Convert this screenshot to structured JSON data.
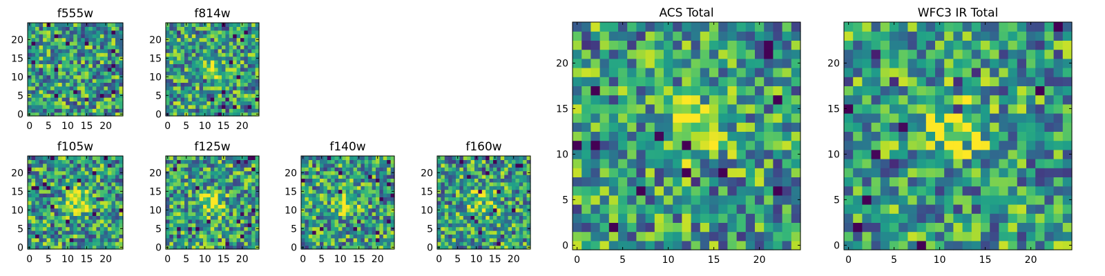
{
  "chart_data": [
    {
      "type": "heatmap",
      "title": "f555w",
      "grid_size": 25,
      "xlim": [
        0,
        25
      ],
      "ylim": [
        0,
        25
      ],
      "xticks": [
        0,
        5,
        10,
        15,
        20
      ],
      "yticks": [
        0,
        5,
        10,
        15,
        20
      ],
      "colormap": "viridis",
      "source_peak": null
    },
    {
      "type": "heatmap",
      "title": "f814w",
      "grid_size": 25,
      "xlim": [
        0,
        25
      ],
      "ylim": [
        0,
        25
      ],
      "xticks": [
        0,
        5,
        10,
        15,
        20
      ],
      "yticks": [
        0,
        5,
        10,
        15,
        20
      ],
      "colormap": "viridis",
      "source_peak": [
        12,
        12
      ]
    },
    {
      "type": "heatmap",
      "title": "f105w",
      "grid_size": 25,
      "xlim": [
        0,
        25
      ],
      "ylim": [
        0,
        25
      ],
      "xticks": [
        0,
        5,
        10,
        15,
        20
      ],
      "yticks": [
        0,
        5,
        10,
        15,
        20
      ],
      "colormap": "viridis",
      "source_peak": [
        13,
        12
      ]
    },
    {
      "type": "heatmap",
      "title": "f125w",
      "grid_size": 25,
      "xlim": [
        0,
        25
      ],
      "ylim": [
        0,
        25
      ],
      "xticks": [
        0,
        5,
        10,
        15,
        20
      ],
      "yticks": [
        0,
        5,
        10,
        15,
        20
      ],
      "colormap": "viridis",
      "source_peak": [
        12,
        12
      ]
    },
    {
      "type": "heatmap",
      "title": "f140w",
      "grid_size": 25,
      "xlim": [
        0,
        25
      ],
      "ylim": [
        0,
        25
      ],
      "xticks": [
        0,
        5,
        10,
        15,
        20
      ],
      "yticks": [
        0,
        5,
        10,
        15,
        20
      ],
      "colormap": "viridis",
      "source_peak": [
        12,
        12
      ]
    },
    {
      "type": "heatmap",
      "title": "f160w",
      "grid_size": 25,
      "xlim": [
        0,
        25
      ],
      "ylim": [
        0,
        25
      ],
      "xticks": [
        0,
        5,
        10,
        15,
        20
      ],
      "yticks": [
        0,
        5,
        10,
        15,
        20
      ],
      "colormap": "viridis",
      "source_peak": [
        11,
        12
      ]
    },
    {
      "type": "heatmap",
      "title": "ACS Total",
      "grid_size": 25,
      "xlim": [
        0,
        25
      ],
      "ylim": [
        0,
        25
      ],
      "xticks": [
        0,
        5,
        10,
        15,
        20
      ],
      "yticks": [
        0,
        5,
        10,
        15,
        20
      ],
      "colormap": "viridis",
      "source_peak": [
        13,
        13
      ]
    },
    {
      "type": "heatmap",
      "title": "WFC3 IR Total",
      "grid_size": 25,
      "xlim": [
        0,
        25
      ],
      "ylim": [
        0,
        25
      ],
      "xticks": [
        0,
        5,
        10,
        15,
        20
      ],
      "yticks": [
        0,
        5,
        10,
        15,
        20
      ],
      "colormap": "viridis",
      "source_peak": [
        12,
        13
      ]
    }
  ]
}
